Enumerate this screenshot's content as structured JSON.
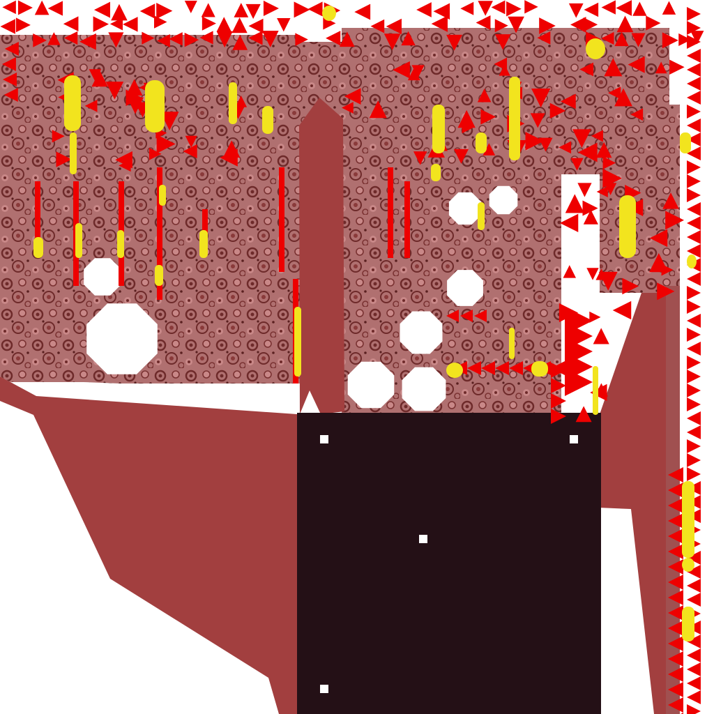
{
  "texture_sheet": {
    "colors": {
      "background": "#ffffff",
      "dark_panel": "#241016",
      "flat_maroon": "#a23f3f",
      "texture_base": "#b07070",
      "texture_dark": "#6e2a2a",
      "texture_light": "#c98888",
      "marker_red": "#ee0000",
      "marker_yellow": "#f2e41e",
      "registration_dot": "#ffffff"
    }
  }
}
